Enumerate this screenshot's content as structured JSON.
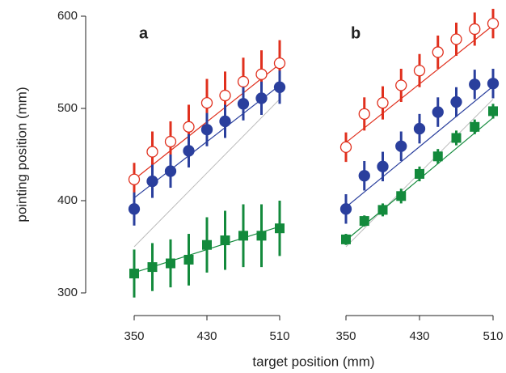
{
  "chart_data": [
    {
      "type": "scatter",
      "title": "a",
      "ylabel": "pointing position (mm)",
      "xlabel": "target position (mm)",
      "x": [
        350,
        370,
        390,
        410,
        430,
        450,
        470,
        490,
        510
      ],
      "xlim": [
        350,
        510
      ],
      "xticks": [
        350,
        430,
        510
      ],
      "ylim": [
        300,
        600
      ],
      "yticks": [
        300,
        400,
        500,
        600
      ],
      "identity_line": true,
      "series": [
        {
          "color": "#e0301e",
          "marker": "open-circle",
          "values": [
            423,
            453,
            464,
            480,
            506,
            514,
            529,
            537,
            549
          ],
          "errors": [
            18,
            22,
            22,
            24,
            26,
            26,
            26,
            26,
            25
          ],
          "fit": [
            423,
            548
          ]
        },
        {
          "color": "#2a3f9d",
          "marker": "circle",
          "values": [
            391,
            421,
            432,
            454,
            477,
            486,
            505,
            511,
            523
          ],
          "errors": [
            18,
            18,
            18,
            18,
            18,
            18,
            18,
            18,
            18
          ],
          "fit": [
            403,
            525
          ]
        },
        {
          "color": "#138a3c",
          "marker": "square",
          "values": [
            321,
            328,
            332,
            336,
            352,
            357,
            362,
            362,
            370
          ],
          "errors": [
            26,
            26,
            26,
            28,
            30,
            32,
            34,
            34,
            30
          ],
          "fit": [
            322,
            372
          ]
        }
      ]
    },
    {
      "type": "scatter",
      "title": "b",
      "x": [
        350,
        370,
        390,
        410,
        430,
        450,
        470,
        490,
        510
      ],
      "xlim": [
        350,
        510
      ],
      "xticks": [
        350,
        430,
        510
      ],
      "ylim": [
        300,
        600
      ],
      "identity_line": true,
      "series": [
        {
          "color": "#e0301e",
          "marker": "open-circle",
          "values": [
            458,
            494,
            506,
            525,
            541,
            561,
            575,
            586,
            592
          ],
          "errors": [
            16,
            18,
            18,
            18,
            18,
            18,
            18,
            18,
            16
          ],
          "fit": [
            463,
            590
          ]
        },
        {
          "color": "#2a3f9d",
          "marker": "circle",
          "values": [
            391,
            427,
            437,
            459,
            478,
            496,
            507,
            526,
            527
          ],
          "errors": [
            16,
            16,
            16,
            16,
            16,
            16,
            16,
            16,
            16
          ],
          "fit": [
            393,
            524
          ]
        },
        {
          "color": "#138a3c",
          "marker": "square",
          "values": [
            358,
            378,
            390,
            405,
            429,
            448,
            468,
            480,
            497
          ],
          "errors": [
            6,
            6,
            7,
            8,
            8,
            8,
            8,
            8,
            8
          ],
          "fit": [
            357,
            490
          ]
        }
      ]
    }
  ]
}
